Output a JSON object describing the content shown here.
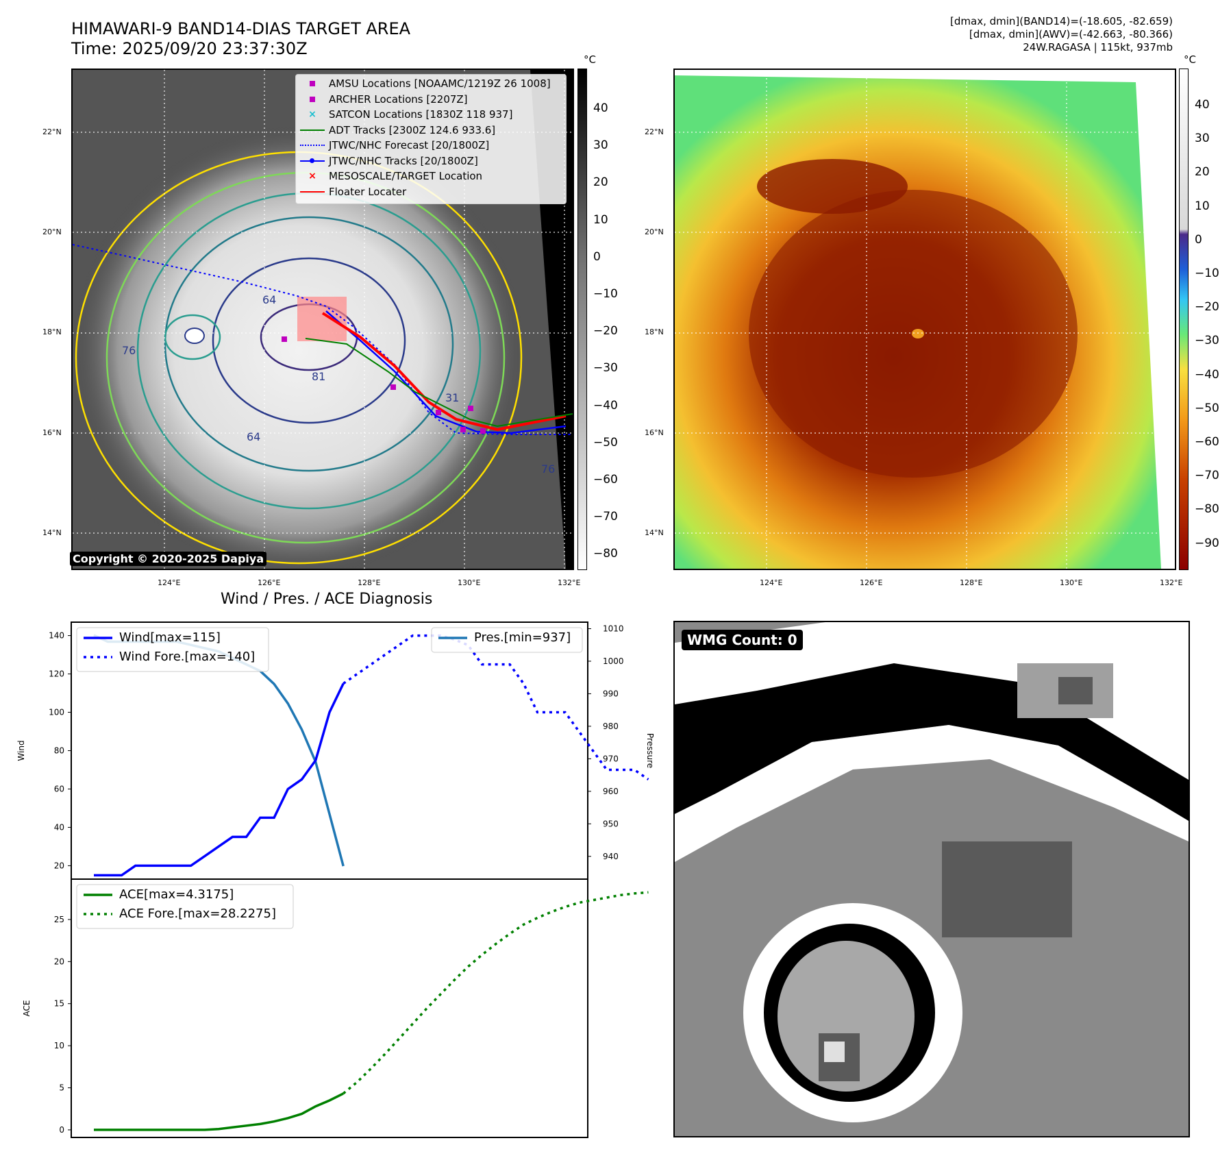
{
  "header": {
    "title_line1": "HIMAWARI-9 BAND14-DIAS TARGET AREA",
    "title_line2": "Time: 2025/09/20 23:37:30Z",
    "info_line1": "[dmax, dmin](BAND14)=(-18.605, -82.659)",
    "info_line2": "[dmax, dmin](AWV)=(-42.663, -80.366)",
    "info_line3": "24W.RAGASA | 115kt, 937mb"
  },
  "map": {
    "lat_ticks": [
      "22°N",
      "20°N",
      "18°N",
      "16°N",
      "14°N"
    ],
    "lon_ticks": [
      "124°E",
      "126°E",
      "128°E",
      "130°E",
      "132°E"
    ],
    "colorbar_unit": "°C",
    "gray_colorbar_ticks": [
      "40",
      "30",
      "20",
      "10",
      "0",
      "−10",
      "−20",
      "−30",
      "−40",
      "−50",
      "−60",
      "−70",
      "−80"
    ],
    "color_colorbar_ticks": [
      "40",
      "30",
      "20",
      "10",
      "0",
      "−10",
      "−20",
      "−30",
      "−40",
      "−50",
      "−60",
      "−70",
      "−80",
      "−90"
    ],
    "contour_labels": [
      "64",
      "76",
      "81",
      "64",
      "76",
      "31"
    ],
    "copyright": "Copyright © 2020-2025 Dapiya",
    "legend": [
      {
        "label": "AMSU Locations [NOAAMC/1219Z 26 1008]",
        "color": "#bf00bf",
        "marker": "square"
      },
      {
        "label": "ARCHER Locations [2207Z]",
        "color": "#bf00bf",
        "marker": "square"
      },
      {
        "label": "SATCON Locations [1830Z 118 937]",
        "color": "#17becf",
        "marker": "x"
      },
      {
        "label": "ADT Tracks [2300Z 124.6 933.6]",
        "color": "#008000",
        "marker": "line"
      },
      {
        "label": "JTWC/NHC Forecast [20/1800Z]",
        "color": "#0000ff",
        "marker": "dotted"
      },
      {
        "label": "JTWC/NHC Tracks [20/1800Z]",
        "color": "#0000ff",
        "marker": "line-dot"
      },
      {
        "label": "MESOSCALE/TARGET Location",
        "color": "#ff0000",
        "marker": "x"
      },
      {
        "label": "Floater Locater",
        "color": "#ff0000",
        "marker": "line"
      }
    ]
  },
  "wmg": {
    "label": "WMG Count: 0"
  },
  "chart_data": [
    {
      "type": "line",
      "title": "Wind / Pres. / ACE Diagnosis",
      "ylabel": "Wind",
      "ylabel_right": "Pressure",
      "ylim": [
        13,
        147
      ],
      "ylim_right": [
        933,
        1012
      ],
      "yticks": [
        20,
        40,
        60,
        80,
        100,
        120,
        140
      ],
      "yticks_right": [
        940,
        950,
        960,
        970,
        980,
        990,
        1000,
        1010
      ],
      "x_count": 35,
      "series": [
        {
          "name": "Wind[max=115]",
          "axis": "left",
          "color": "#0000ff",
          "style": "solid",
          "values": [
            15,
            15,
            15,
            20,
            20,
            20,
            20,
            20,
            25,
            30,
            35,
            35,
            45,
            45,
            60,
            65,
            75,
            100,
            115
          ]
        },
        {
          "name": "Wind Fore.[max=140]",
          "axis": "left",
          "color": "#0000ff",
          "style": "dotted",
          "x_start": 18,
          "values": [
            115,
            120,
            125,
            130,
            135,
            140,
            140,
            140,
            138,
            135,
            125,
            125,
            125,
            115,
            100,
            100,
            100,
            90,
            80,
            70,
            70,
            70,
            65
          ]
        },
        {
          "name": "Pres.[min=937]",
          "axis": "right",
          "color": "#1f77b4",
          "style": "solid",
          "values": [
            1008,
            1006,
            1006,
            1006,
            1006,
            1006,
            1006,
            1005,
            1004,
            1003,
            1001,
            999,
            997,
            993,
            987,
            979,
            969,
            953,
            937
          ]
        }
      ]
    },
    {
      "type": "line",
      "ylabel": "ACE",
      "ylim": [
        -0.9,
        29.8
      ],
      "yticks": [
        0,
        5,
        10,
        15,
        20,
        25
      ],
      "x_count": 35,
      "series": [
        {
          "name": "ACE[max=4.3175]",
          "color": "#008000",
          "style": "solid",
          "values": [
            0,
            0,
            0,
            0,
            0,
            0,
            0,
            0,
            0,
            0.1,
            0.3,
            0.5,
            0.7,
            1.0,
            1.4,
            1.9,
            2.8,
            3.5,
            4.3175
          ]
        },
        {
          "name": "ACE Fore.[max=28.2275]",
          "color": "#008000",
          "style": "dotted",
          "x_start": 18,
          "values": [
            4.3175,
            5.7,
            7.3,
            9.0,
            10.8,
            12.6,
            14.4,
            16.1,
            17.8,
            19.4,
            20.8,
            22.1,
            23.3,
            24.4,
            25.2,
            25.9,
            26.5,
            27.0,
            27.3,
            27.6,
            27.9,
            28.1,
            28.2275
          ]
        }
      ]
    }
  ]
}
